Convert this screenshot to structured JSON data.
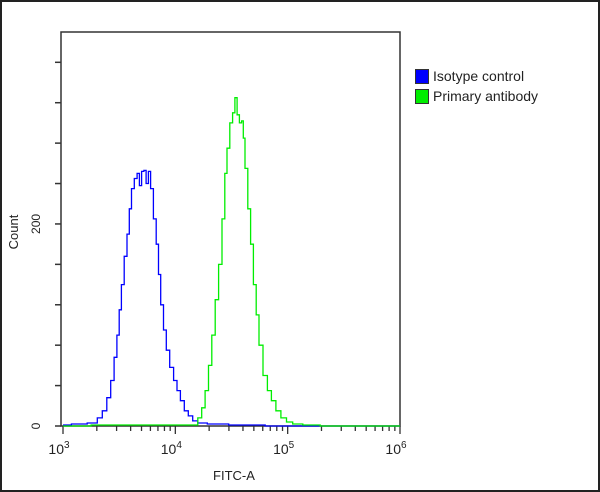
{
  "chart_data": {
    "type": "line",
    "title": "",
    "xlabel": "FITC-A",
    "ylabel": "Count",
    "x_scale": "log10",
    "xlim": [
      1000,
      1000000
    ],
    "ylim": [
      0,
      390
    ],
    "x_ticks": [
      {
        "value": 1000,
        "base": "10",
        "exp": "3"
      },
      {
        "value": 10000,
        "base": "10",
        "exp": "4"
      },
      {
        "value": 100000,
        "base": "10",
        "exp": "5"
      },
      {
        "value": 1000000,
        "base": "10",
        "exp": "6"
      }
    ],
    "y_ticks": [
      0,
      40,
      80,
      120,
      160,
      200,
      240,
      280,
      320,
      360
    ],
    "y_tick_labels": [
      {
        "value": 0,
        "label": "0"
      },
      {
        "value": 200,
        "label": "200"
      }
    ],
    "grid": false,
    "legend_position": "right-top",
    "series": [
      {
        "name": "Isotype control",
        "color": "#0000ff",
        "points_log10x_count": [
          [
            3.0,
            1
          ],
          [
            3.15,
            2
          ],
          [
            3.28,
            3
          ],
          [
            3.33,
            8
          ],
          [
            3.37,
            15
          ],
          [
            3.41,
            28
          ],
          [
            3.44,
            45
          ],
          [
            3.47,
            68
          ],
          [
            3.49,
            90
          ],
          [
            3.51,
            115
          ],
          [
            3.53,
            140
          ],
          [
            3.56,
            168
          ],
          [
            3.58,
            190
          ],
          [
            3.6,
            215
          ],
          [
            3.62,
            235
          ],
          [
            3.65,
            245
          ],
          [
            3.67,
            250
          ],
          [
            3.69,
            238
          ],
          [
            3.71,
            252
          ],
          [
            3.73,
            253
          ],
          [
            3.75,
            240
          ],
          [
            3.77,
            252
          ],
          [
            3.79,
            235
          ],
          [
            3.82,
            205
          ],
          [
            3.84,
            180
          ],
          [
            3.86,
            150
          ],
          [
            3.88,
            120
          ],
          [
            3.91,
            95
          ],
          [
            3.93,
            75
          ],
          [
            3.97,
            58
          ],
          [
            4.0,
            45
          ],
          [
            4.03,
            35
          ],
          [
            4.06,
            25
          ],
          [
            4.1,
            15
          ],
          [
            4.13,
            10
          ],
          [
            4.18,
            5
          ],
          [
            4.22,
            3
          ],
          [
            4.35,
            2
          ],
          [
            4.6,
            1
          ],
          [
            5.0,
            0
          ],
          [
            6.0,
            0
          ]
        ]
      },
      {
        "name": "Primary antibody",
        "color": "#00ee00",
        "points_log10x_count": [
          [
            3.0,
            0
          ],
          [
            3.5,
            1
          ],
          [
            4.0,
            1
          ],
          [
            4.18,
            1
          ],
          [
            4.22,
            8
          ],
          [
            4.25,
            18
          ],
          [
            4.28,
            35
          ],
          [
            4.31,
            60
          ],
          [
            4.34,
            90
          ],
          [
            4.37,
            125
          ],
          [
            4.4,
            160
          ],
          [
            4.43,
            205
          ],
          [
            4.45,
            250
          ],
          [
            4.47,
            275
          ],
          [
            4.5,
            300
          ],
          [
            4.52,
            310
          ],
          [
            4.54,
            325
          ],
          [
            4.56,
            308
          ],
          [
            4.58,
            300
          ],
          [
            4.6,
            302
          ],
          [
            4.61,
            285
          ],
          [
            4.63,
            255
          ],
          [
            4.66,
            215
          ],
          [
            4.68,
            180
          ],
          [
            4.71,
            140
          ],
          [
            4.73,
            110
          ],
          [
            4.76,
            80
          ],
          [
            4.8,
            50
          ],
          [
            4.84,
            35
          ],
          [
            4.87,
            25
          ],
          [
            4.92,
            15
          ],
          [
            4.96,
            8
          ],
          [
            5.02,
            4
          ],
          [
            5.07,
            2
          ],
          [
            5.2,
            1
          ],
          [
            5.38,
            0
          ],
          [
            6.0,
            0
          ]
        ]
      }
    ]
  },
  "legend": {
    "items": [
      {
        "label": "Isotype control",
        "color": "#0000ff"
      },
      {
        "label": "Primary antibody",
        "color": "#00ee00"
      }
    ]
  }
}
